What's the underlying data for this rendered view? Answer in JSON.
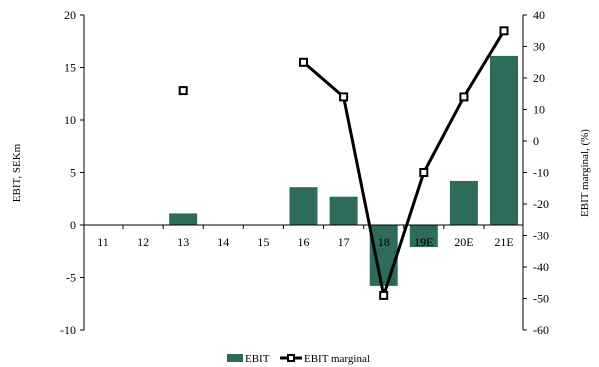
{
  "chart_data": {
    "type": "bar",
    "categories": [
      "11",
      "12",
      "13",
      "14",
      "15",
      "16",
      "17",
      "18",
      "19E",
      "20E",
      "21E"
    ],
    "series": [
      {
        "name": "EBIT",
        "type": "bar",
        "axis": "left",
        "values": [
          null,
          null,
          1.1,
          null,
          null,
          3.6,
          2.7,
          -5.8,
          -2.1,
          4.2,
          16.1
        ]
      },
      {
        "name": "EBIT marginal",
        "type": "line",
        "axis": "right",
        "values": [
          null,
          null,
          16,
          null,
          null,
          25,
          14,
          -49,
          -10,
          14,
          35
        ]
      }
    ],
    "ylabel": "EBIT, SEKm",
    "ylim": [
      -10,
      20
    ],
    "yticks": [
      -10,
      -5,
      0,
      5,
      10,
      15,
      20
    ],
    "y2label": "EBIT marginal, (%)",
    "y2lim": [
      -60,
      40
    ],
    "y2ticks": [
      -60,
      -50,
      -40,
      -30,
      -20,
      -10,
      0,
      10,
      20,
      30,
      40
    ],
    "legend_position": "bottom",
    "grid": false,
    "colors": {
      "bar": "#2e6b5a",
      "line": "#000000"
    }
  }
}
